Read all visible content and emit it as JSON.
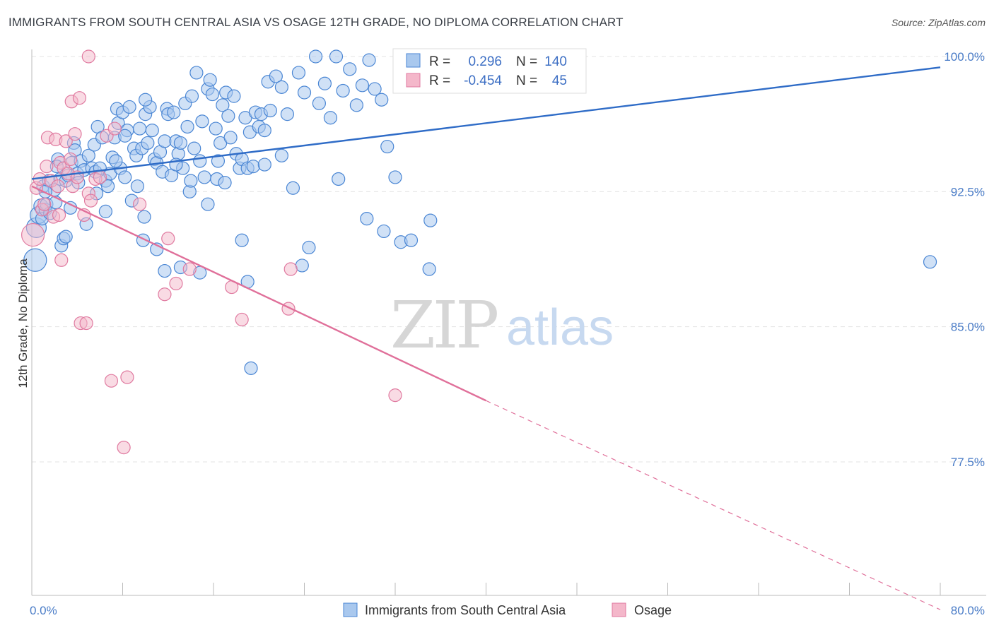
{
  "title": "IMMIGRANTS FROM SOUTH CENTRAL ASIA VS OSAGE 12TH GRADE, NO DIPLOMA CORRELATION CHART",
  "source": "Source: ZipAtlas.com",
  "watermark": {
    "part1": "ZIP",
    "part2": "atlas"
  },
  "legend": {
    "r_label": "R =",
    "n_label": "N =",
    "series1": {
      "r": "0.296",
      "n": "140"
    },
    "series2": {
      "r": "-0.454",
      "n": "45"
    }
  },
  "bottom_legend": {
    "series1": "Immigrants from South Central Asia",
    "series2": "Osage"
  },
  "colors": {
    "blue": "#4a86d4",
    "blue_fill": "#a9c8ee",
    "blue_line": "#2f6cc7",
    "pink": "#e07aa0",
    "pink_fill": "#f4b7ca",
    "pink_line": "#e0709a"
  },
  "chart_data": {
    "type": "scatter",
    "title": "IMMIGRANTS FROM SOUTH CENTRAL ASIA VS OSAGE 12TH GRADE, NO DIPLOMA CORRELATION CHART",
    "xlabel": "",
    "ylabel": "12th Grade, No Diploma",
    "xlim": [
      0,
      80
    ],
    "ylim": [
      70,
      101
    ],
    "x_tick_labels": [
      "0.0%",
      "80.0%"
    ],
    "y_ticks": [
      77.5,
      85.0,
      92.5,
      100.0
    ],
    "y_tick_labels": [
      "77.5%",
      "85.0%",
      "92.5%",
      "100.0%"
    ],
    "grid": true,
    "series": [
      {
        "name": "Immigrants from South Central Asia",
        "r": 0.296,
        "n": 140,
        "trend": {
          "x": [
            0,
            80
          ],
          "y": [
            93.2,
            99.4
          ],
          "dashed_from": null
        },
        "points": [
          [
            0.3,
            88.7,
            16
          ],
          [
            0.4,
            90.5,
            14
          ],
          [
            0.6,
            91.2,
            12
          ],
          [
            0.8,
            91.7,
            10
          ],
          [
            0.9,
            91.0,
            9
          ],
          [
            1.0,
            92.8,
            9
          ],
          [
            1.2,
            91.5,
            9
          ],
          [
            1.3,
            91.8,
            9
          ],
          [
            1.5,
            93.1,
            9
          ],
          [
            1.6,
            91.3,
            9
          ],
          [
            2.0,
            92.6,
            9
          ],
          [
            2.1,
            91.9,
            9
          ],
          [
            2.3,
            94.3,
            9
          ],
          [
            2.5,
            93.2,
            9
          ],
          [
            2.6,
            89.5,
            9
          ],
          [
            2.8,
            89.9,
            9
          ],
          [
            3.0,
            93.1,
            9
          ],
          [
            3.2,
            93.4,
            9
          ],
          [
            3.4,
            91.6,
            9
          ],
          [
            3.5,
            94.1,
            9
          ],
          [
            3.7,
            95.2,
            9
          ],
          [
            3.8,
            94.8,
            9
          ],
          [
            4.0,
            93.5,
            9
          ],
          [
            4.1,
            93.0,
            9
          ],
          [
            4.3,
            94.2,
            9
          ],
          [
            4.6,
            93.7,
            9
          ],
          [
            4.8,
            90.7,
            9
          ],
          [
            5.0,
            94.5,
            9
          ],
          [
            5.3,
            93.8,
            9
          ],
          [
            5.5,
            95.1,
            9
          ],
          [
            5.6,
            93.6,
            9
          ],
          [
            5.8,
            96.1,
            9
          ],
          [
            6.0,
            93.8,
            9
          ],
          [
            6.2,
            95.5,
            9
          ],
          [
            6.5,
            93.1,
            9
          ],
          [
            6.7,
            92.8,
            9
          ],
          [
            6.9,
            93.5,
            9
          ],
          [
            7.1,
            94.4,
            9
          ],
          [
            7.3,
            95.5,
            9
          ],
          [
            7.5,
            97.1,
            9
          ],
          [
            7.6,
            96.3,
            9
          ],
          [
            7.8,
            93.8,
            9
          ],
          [
            8.0,
            96.9,
            9
          ],
          [
            8.2,
            93.3,
            9
          ],
          [
            8.4,
            95.9,
            9
          ],
          [
            8.6,
            97.2,
            9
          ],
          [
            8.8,
            92.0,
            9
          ],
          [
            9.0,
            94.9,
            9
          ],
          [
            9.2,
            94.5,
            9
          ],
          [
            9.5,
            96.0,
            9
          ],
          [
            9.7,
            94.9,
            9
          ],
          [
            9.9,
            91.1,
            9
          ],
          [
            10.0,
            96.8,
            9
          ],
          [
            10.2,
            95.2,
            9
          ],
          [
            10.4,
            97.2,
            9
          ],
          [
            10.6,
            95.9,
            9
          ],
          [
            10.8,
            94.3,
            9
          ],
          [
            11.0,
            94.1,
            9
          ],
          [
            11.3,
            94.7,
            9
          ],
          [
            11.5,
            93.6,
            9
          ],
          [
            11.7,
            95.3,
            9
          ],
          [
            11.9,
            97.1,
            9
          ],
          [
            12.0,
            96.8,
            9
          ],
          [
            12.3,
            93.4,
            9
          ],
          [
            12.5,
            96.9,
            9
          ],
          [
            12.7,
            95.3,
            9
          ],
          [
            12.9,
            94.6,
            9
          ],
          [
            13.1,
            95.2,
            9
          ],
          [
            13.3,
            93.8,
            9
          ],
          [
            13.5,
            97.4,
            9
          ],
          [
            13.7,
            96.1,
            9
          ],
          [
            13.9,
            92.5,
            9
          ],
          [
            14.1,
            97.8,
            9
          ],
          [
            14.3,
            94.9,
            9
          ],
          [
            14.5,
            99.1,
            9
          ],
          [
            14.8,
            94.2,
            9
          ],
          [
            15.0,
            96.4,
            9
          ],
          [
            15.2,
            93.3,
            9
          ],
          [
            15.5,
            98.2,
            9
          ],
          [
            15.7,
            98.7,
            9
          ],
          [
            15.9,
            97.9,
            9
          ],
          [
            16.2,
            96.0,
            9
          ],
          [
            16.4,
            94.2,
            9
          ],
          [
            16.6,
            95.2,
            9
          ],
          [
            16.8,
            97.3,
            9
          ],
          [
            17.1,
            98.0,
            9
          ],
          [
            17.3,
            96.7,
            9
          ],
          [
            17.5,
            95.5,
            9
          ],
          [
            17.8,
            97.8,
            9
          ],
          [
            18.0,
            94.6,
            9
          ],
          [
            18.3,
            93.8,
            9
          ],
          [
            18.5,
            94.3,
            9
          ],
          [
            18.8,
            96.6,
            9
          ],
          [
            19.0,
            93.8,
            9
          ],
          [
            19.2,
            95.8,
            9
          ],
          [
            19.5,
            93.9,
            9
          ],
          [
            19.7,
            96.9,
            9
          ],
          [
            20.0,
            96.1,
            9
          ],
          [
            20.2,
            96.8,
            9
          ],
          [
            20.5,
            95.9,
            9
          ],
          [
            20.8,
            98.6,
            9
          ],
          [
            21.0,
            97.0,
            9
          ],
          [
            21.5,
            98.9,
            9
          ],
          [
            22.0,
            98.3,
            9
          ],
          [
            22.5,
            96.8,
            9
          ],
          [
            23.0,
            92.7,
            9
          ],
          [
            23.5,
            99.1,
            9
          ],
          [
            24.0,
            98.0,
            9
          ],
          [
            24.4,
            89.4,
            9
          ],
          [
            25.0,
            100.0,
            9
          ],
          [
            25.3,
            97.4,
            9
          ],
          [
            25.8,
            98.5,
            9
          ],
          [
            26.3,
            96.6,
            9
          ],
          [
            26.8,
            100.0,
            9
          ],
          [
            27.4,
            98.1,
            9
          ],
          [
            28.0,
            99.3,
            9
          ],
          [
            28.6,
            97.3,
            9
          ],
          [
            29.1,
            98.4,
            9
          ],
          [
            29.7,
            99.8,
            9
          ],
          [
            30.2,
            98.2,
            9
          ],
          [
            30.8,
            97.6,
            9
          ],
          [
            31.3,
            95.0,
            9
          ],
          [
            32.0,
            93.3,
            9
          ],
          [
            32.5,
            89.7,
            9
          ],
          [
            33.4,
            89.8,
            9
          ],
          [
            35.1,
            90.9,
            9
          ],
          [
            9.8,
            89.8,
            9
          ],
          [
            11.0,
            89.3,
            9
          ],
          [
            11.7,
            88.1,
            9
          ],
          [
            13.1,
            88.3,
            9
          ],
          [
            14.8,
            88.0,
            9
          ],
          [
            19.0,
            87.5,
            9
          ],
          [
            19.3,
            82.7,
            9
          ],
          [
            14.0,
            93.1,
            9
          ],
          [
            16.3,
            93.2,
            9
          ],
          [
            20.5,
            94.0,
            9
          ],
          [
            22.0,
            94.5,
            9
          ],
          [
            10.0,
            97.6,
            9
          ],
          [
            1.2,
            92.5,
            9
          ],
          [
            2.2,
            93.9,
            9
          ],
          [
            3.0,
            90.0,
            9
          ],
          [
            5.7,
            92.4,
            9
          ],
          [
            6.5,
            91.4,
            9
          ],
          [
            7.4,
            94.2,
            9
          ],
          [
            8.2,
            95.6,
            9
          ],
          [
            9.3,
            92.8,
            9
          ],
          [
            12.7,
            94.0,
            9
          ],
          [
            15.5,
            91.8,
            9
          ],
          [
            17.0,
            93.0,
            9
          ],
          [
            18.5,
            89.8,
            9
          ],
          [
            23.8,
            88.4,
            9
          ],
          [
            27.0,
            93.2,
            9
          ],
          [
            29.5,
            91.0,
            9
          ],
          [
            31.0,
            90.3,
            9
          ],
          [
            35.0,
            88.2,
            9
          ],
          [
            79.1,
            88.6,
            9
          ]
        ]
      },
      {
        "name": "Osage",
        "r": -0.454,
        "n": 45,
        "trend": {
          "x": [
            0,
            40,
            80
          ],
          "y": [
            92.8,
            80.9,
            69.3
          ],
          "dashed_from": 40
        },
        "points": [
          [
            0.1,
            90.1,
            16
          ],
          [
            0.4,
            92.7,
            9
          ],
          [
            0.7,
            93.2,
            9
          ],
          [
            0.9,
            91.5,
            9
          ],
          [
            1.1,
            91.8,
            9
          ],
          [
            1.3,
            93.9,
            9
          ],
          [
            1.4,
            95.5,
            9
          ],
          [
            1.7,
            93.1,
            9
          ],
          [
            1.9,
            91.1,
            9
          ],
          [
            2.1,
            95.4,
            9
          ],
          [
            2.3,
            92.8,
            9
          ],
          [
            2.4,
            91.2,
            9
          ],
          [
            2.5,
            94.1,
            9
          ],
          [
            2.6,
            88.7,
            9
          ],
          [
            2.8,
            93.8,
            9
          ],
          [
            3.0,
            95.3,
            9
          ],
          [
            3.2,
            93.5,
            9
          ],
          [
            3.4,
            94.3,
            9
          ],
          [
            3.5,
            97.5,
            9
          ],
          [
            3.6,
            92.8,
            9
          ],
          [
            3.8,
            95.7,
            9
          ],
          [
            4.0,
            93.3,
            9
          ],
          [
            4.2,
            97.7,
            9
          ],
          [
            4.3,
            85.2,
            9
          ],
          [
            4.6,
            91.2,
            9
          ],
          [
            4.8,
            85.2,
            9
          ],
          [
            5.0,
            92.4,
            9
          ],
          [
            5.2,
            92.0,
            9
          ],
          [
            5.6,
            93.2,
            9
          ],
          [
            5.0,
            100.0,
            9
          ],
          [
            6.0,
            93.3,
            9
          ],
          [
            6.6,
            95.6,
            9
          ],
          [
            7.0,
            82.0,
            9
          ],
          [
            7.3,
            96.0,
            9
          ],
          [
            8.1,
            78.3,
            9
          ],
          [
            8.4,
            82.2,
            9
          ],
          [
            9.5,
            91.8,
            9
          ],
          [
            11.7,
            86.8,
            9
          ],
          [
            12.0,
            89.9,
            9
          ],
          [
            12.7,
            87.4,
            9
          ],
          [
            13.9,
            88.2,
            9
          ],
          [
            17.6,
            87.2,
            9
          ],
          [
            18.5,
            85.4,
            9
          ],
          [
            22.8,
            88.2,
            9
          ],
          [
            22.6,
            86.0,
            9
          ],
          [
            32.0,
            81.2,
            9
          ]
        ]
      }
    ]
  }
}
